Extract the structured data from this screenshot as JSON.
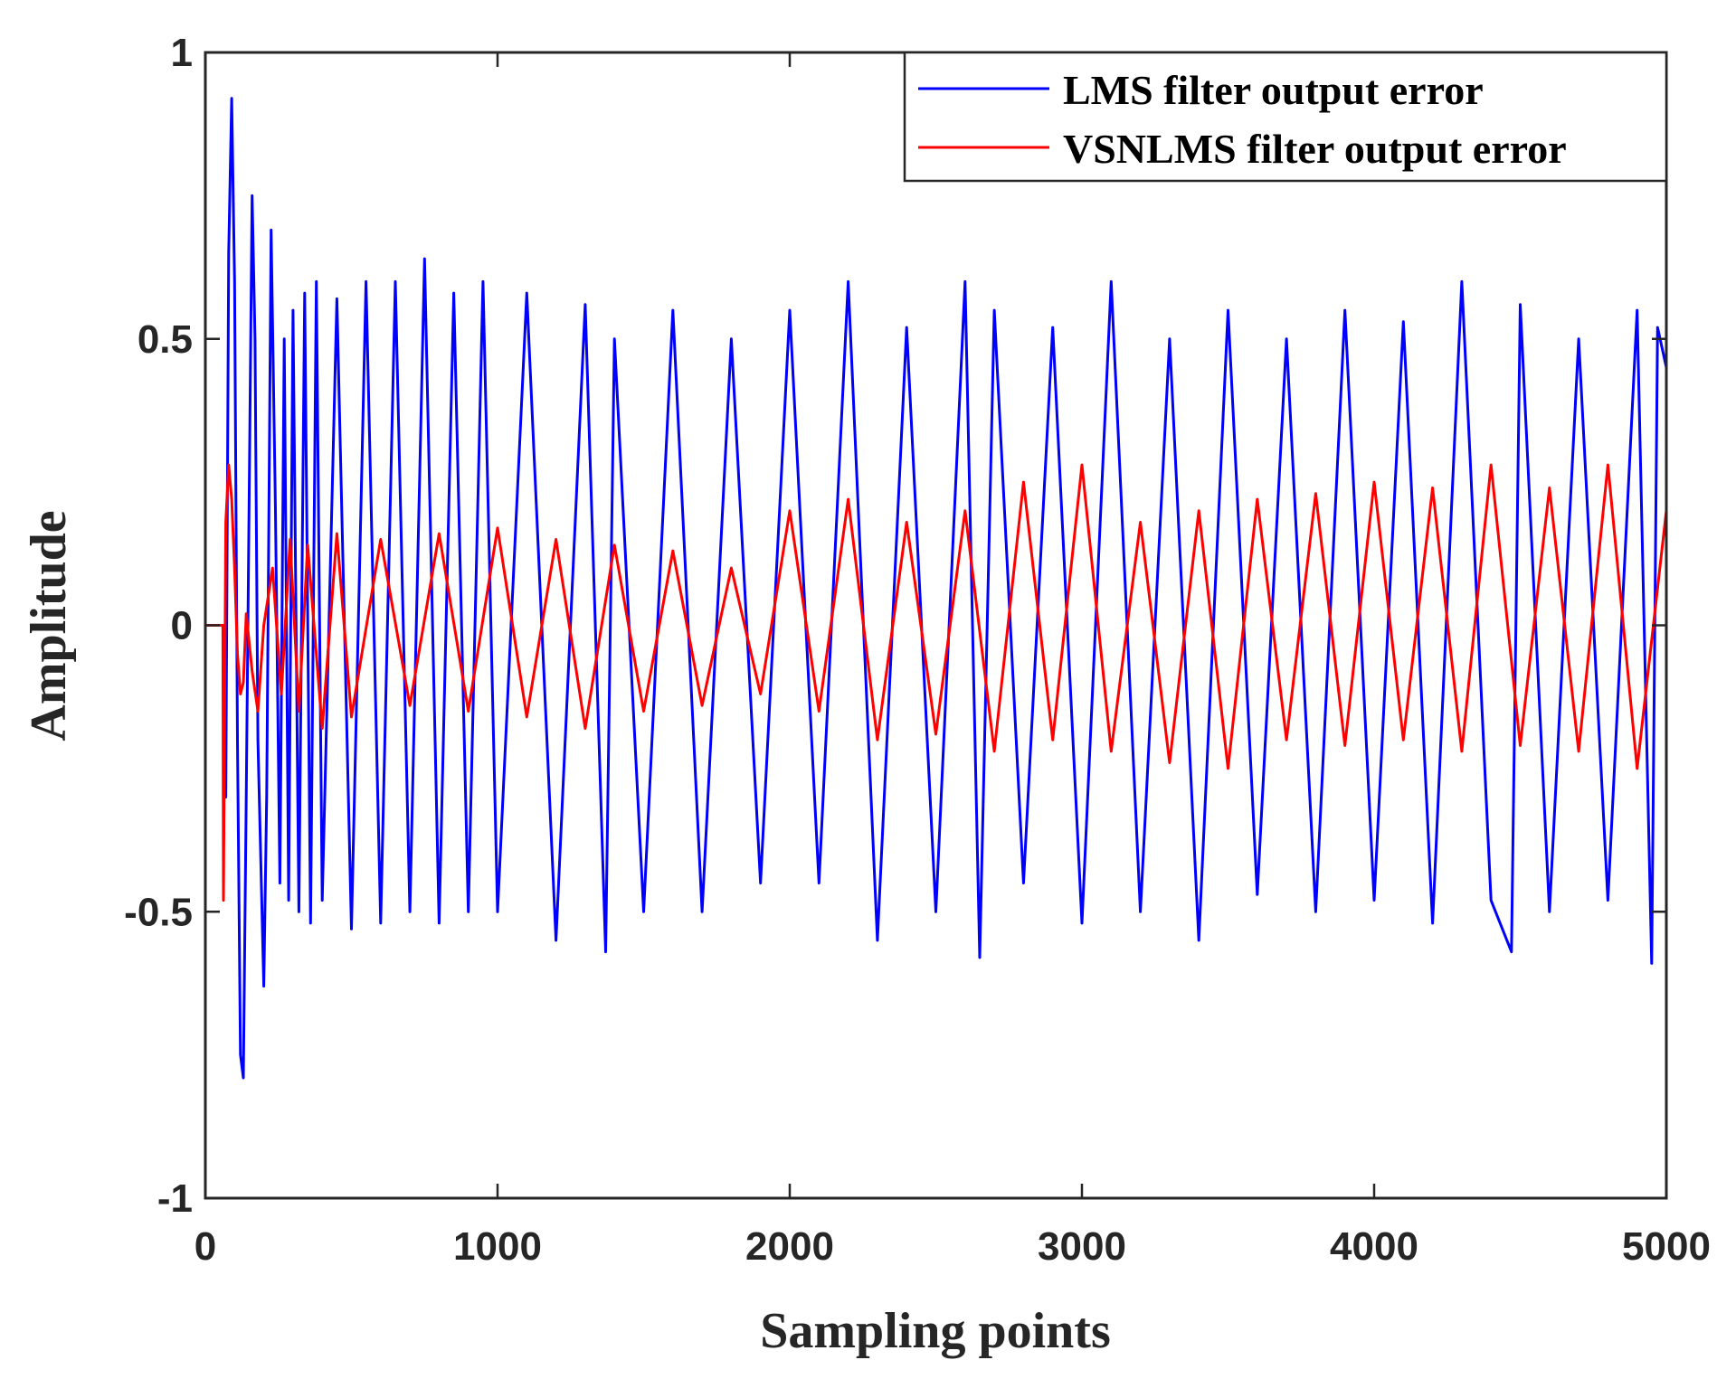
{
  "chart_data": {
    "type": "line",
    "title": "",
    "xlabel": "Sampling points",
    "ylabel": "Amplitude",
    "xlim": [
      0,
      5000
    ],
    "ylim": [
      -1,
      1
    ],
    "xticks": [
      0,
      1000,
      2000,
      3000,
      4000,
      5000
    ],
    "xtick_labels": [
      "0",
      "1000",
      "2000",
      "3000",
      "4000",
      "5000"
    ],
    "yticks": [
      -1,
      -0.5,
      0,
      0.5,
      1
    ],
    "ytick_labels": [
      "-1",
      "-0.5",
      "0",
      "0.5",
      "1"
    ],
    "grid": false,
    "legend_position": "top-right",
    "series": [
      {
        "name": "LMS filter output error",
        "color": "#0000ff",
        "x": [
          0,
          60,
          70,
          80,
          90,
          100,
          110,
          120,
          130,
          140,
          160,
          170,
          180,
          200,
          210,
          225,
          240,
          255,
          270,
          285,
          300,
          320,
          340,
          360,
          380,
          400,
          450,
          500,
          550,
          600,
          650,
          700,
          750,
          800,
          850,
          900,
          950,
          1000,
          1100,
          1200,
          1300,
          1370,
          1400,
          1500,
          1600,
          1700,
          1800,
          1900,
          2000,
          2100,
          2200,
          2300,
          2400,
          2500,
          2600,
          2650,
          2700,
          2800,
          2900,
          3000,
          3100,
          3200,
          3300,
          3400,
          3500,
          3600,
          3700,
          3800,
          3900,
          4000,
          4100,
          4200,
          4300,
          4400,
          4470,
          4500,
          4600,
          4700,
          4800,
          4900,
          4950,
          4970,
          5000
        ],
        "y": [
          0,
          0,
          -0.3,
          0.65,
          0.92,
          0.6,
          -0.2,
          -0.75,
          -0.79,
          -0.3,
          0.75,
          0.5,
          -0.2,
          -0.63,
          -0.3,
          0.69,
          0.2,
          -0.45,
          0.5,
          -0.48,
          0.55,
          -0.5,
          0.58,
          -0.52,
          0.6,
          -0.48,
          0.57,
          -0.53,
          0.6,
          -0.52,
          0.6,
          -0.5,
          0.64,
          -0.52,
          0.58,
          -0.5,
          0.6,
          -0.5,
          0.58,
          -0.55,
          0.56,
          -0.57,
          0.5,
          -0.5,
          0.55,
          -0.5,
          0.5,
          -0.45,
          0.55,
          -0.45,
          0.6,
          -0.55,
          0.52,
          -0.5,
          0.6,
          -0.58,
          0.55,
          -0.45,
          0.52,
          -0.52,
          0.6,
          -0.5,
          0.5,
          -0.55,
          0.55,
          -0.47,
          0.5,
          -0.5,
          0.55,
          -0.48,
          0.53,
          -0.52,
          0.6,
          -0.48,
          -0.57,
          0.56,
          -0.5,
          0.5,
          -0.48,
          0.55,
          -0.59,
          0.52,
          0.45
        ]
      },
      {
        "name": "VSNLMS filter output error",
        "color": "#ff0000",
        "x": [
          0,
          60,
          62,
          70,
          80,
          90,
          100,
          110,
          120,
          130,
          140,
          160,
          180,
          200,
          230,
          260,
          290,
          320,
          350,
          400,
          450,
          500,
          600,
          700,
          800,
          900,
          1000,
          1100,
          1200,
          1300,
          1400,
          1500,
          1600,
          1700,
          1800,
          1900,
          2000,
          2100,
          2200,
          2300,
          2400,
          2500,
          2600,
          2700,
          2800,
          2900,
          3000,
          3100,
          3200,
          3300,
          3400,
          3500,
          3600,
          3700,
          3800,
          3900,
          4000,
          4100,
          4200,
          4300,
          4400,
          4500,
          4600,
          4700,
          4800,
          4900,
          5000
        ],
        "y": [
          0,
          0,
          -0.48,
          0.18,
          0.28,
          0.22,
          0.1,
          -0.05,
          -0.12,
          -0.1,
          0.02,
          -0.08,
          -0.15,
          0.0,
          0.1,
          -0.12,
          0.15,
          -0.15,
          0.14,
          -0.18,
          0.16,
          -0.16,
          0.15,
          -0.14,
          0.16,
          -0.15,
          0.17,
          -0.16,
          0.15,
          -0.18,
          0.14,
          -0.15,
          0.13,
          -0.14,
          0.1,
          -0.12,
          0.2,
          -0.15,
          0.22,
          -0.2,
          0.18,
          -0.19,
          0.2,
          -0.22,
          0.25,
          -0.2,
          0.28,
          -0.22,
          0.18,
          -0.24,
          0.2,
          -0.25,
          0.22,
          -0.2,
          0.23,
          -0.21,
          0.25,
          -0.2,
          0.24,
          -0.22,
          0.28,
          -0.21,
          0.24,
          -0.22,
          0.28,
          -0.25,
          0.2
        ]
      }
    ]
  }
}
